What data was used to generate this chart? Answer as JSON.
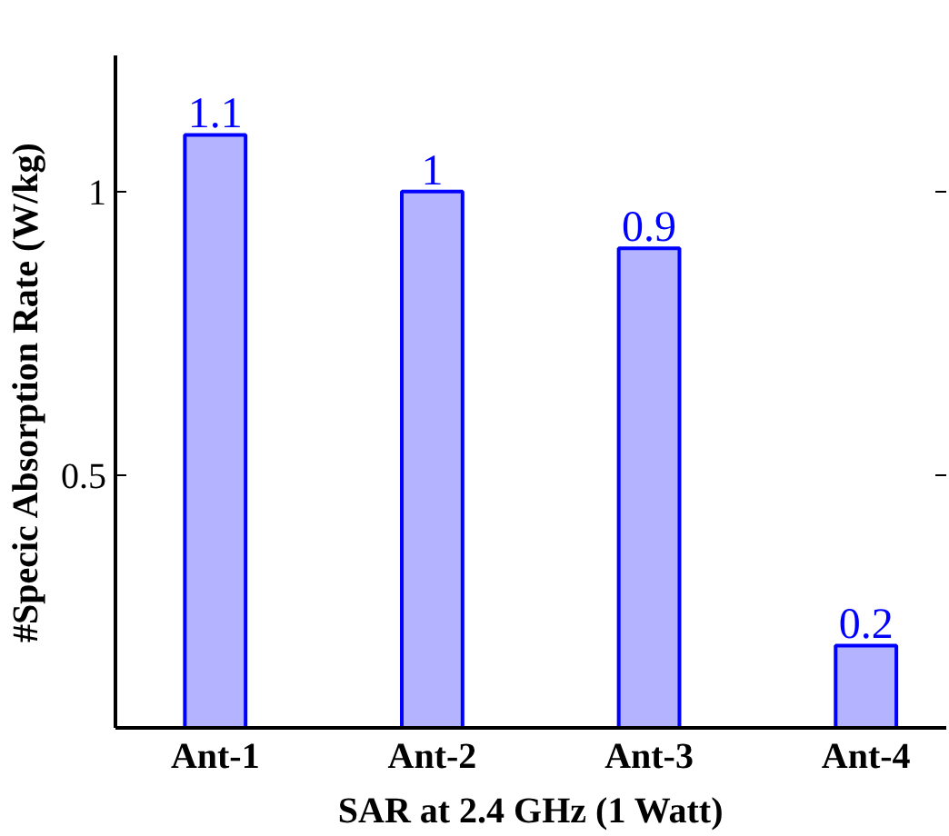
{
  "chart_data": {
    "type": "bar",
    "xlabel": "SAR at 2.4 GHz (1 Watt)",
    "ylabel": "#Specic Absorption Rate (W/kg)",
    "categories": [
      "Ant-1",
      "Ant-2",
      "Ant-3",
      "Ant-4"
    ],
    "values": [
      1.1,
      1,
      0.9,
      0.2
    ],
    "color": "#b3b3ff",
    "ylim": [
      0.055,
      1.24
    ],
    "yticks": [
      0.5,
      1
    ],
    "data_labels": true,
    "grid": false
  }
}
